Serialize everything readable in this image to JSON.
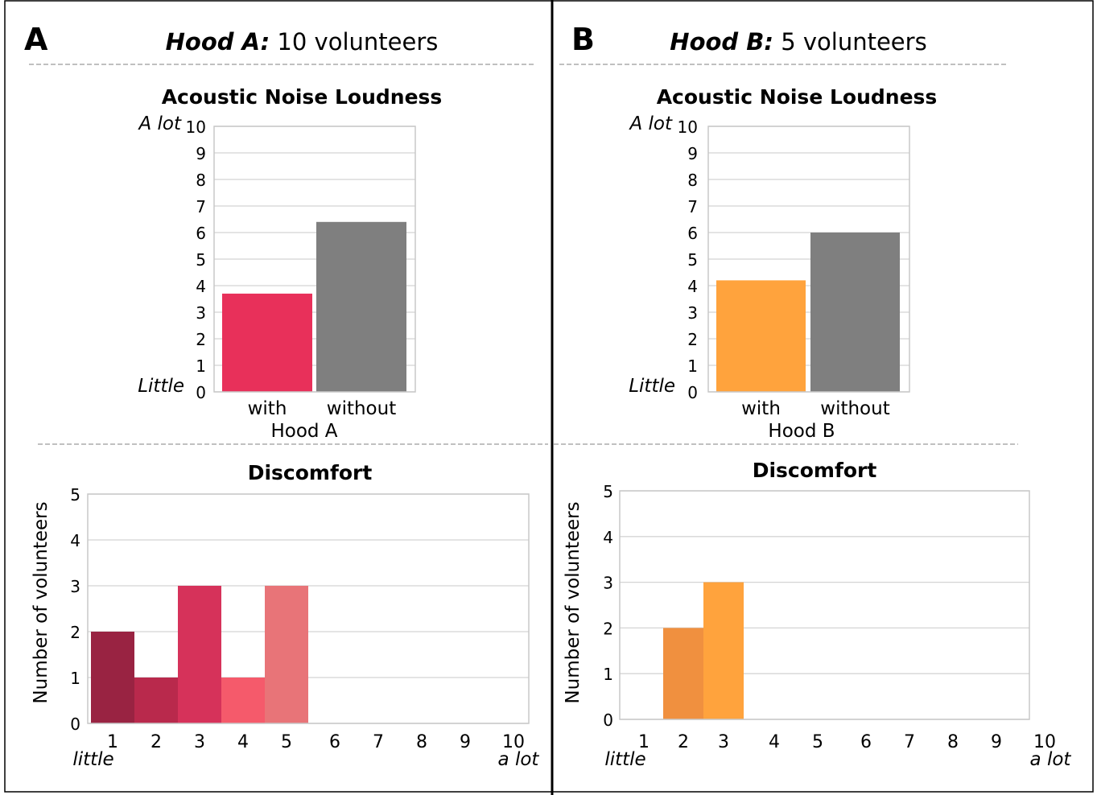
{
  "panels": [
    {
      "letter": "A",
      "title_bold": "Hood A:",
      "title_rest": " 10 volunteers",
      "loudness": {
        "title": "Acoustic Noise Loudness",
        "y_top_label": "A lot",
        "y_bottom_label": "Little",
        "xlabel": "Hood A"
      },
      "discomfort": {
        "title": "Discomfort",
        "ylabel": "Number of volunteers",
        "x_low_label": "little",
        "x_high_label": "a lot"
      }
    },
    {
      "letter": "B",
      "title_bold": "Hood B:",
      "title_rest": " 5 volunteers",
      "loudness": {
        "title": "Acoustic Noise Loudness",
        "y_top_label": "A lot",
        "y_bottom_label": "Little",
        "xlabel": "Hood B"
      },
      "discomfort": {
        "title": "Discomfort",
        "ylabel": "Number of volunteers",
        "x_low_label": "little",
        "x_high_label": "a lot"
      }
    }
  ],
  "chart_data": [
    {
      "id": "loudness-a",
      "type": "bar",
      "title": "Acoustic Noise Loudness",
      "categories": [
        "with",
        "without"
      ],
      "values": [
        3.7,
        6.4
      ],
      "colors": [
        "#e8305a",
        "#7f7f7f"
      ],
      "xlabel": "Hood A",
      "ylabel": "",
      "ylim": [
        0,
        10
      ],
      "yticks": [
        "0",
        "1",
        "2",
        "3",
        "4",
        "5",
        "6",
        "7",
        "8",
        "9",
        "10"
      ],
      "grid": true
    },
    {
      "id": "loudness-b",
      "type": "bar",
      "title": "Acoustic Noise Loudness",
      "categories": [
        "with",
        "without"
      ],
      "values": [
        4.2,
        6.0
      ],
      "colors": [
        "#ffa33d",
        "#7f7f7f"
      ],
      "xlabel": "Hood B",
      "ylabel": "",
      "ylim": [
        0,
        10
      ],
      "yticks": [
        "0",
        "1",
        "2",
        "3",
        "4",
        "5",
        "6",
        "7",
        "8",
        "9",
        "10"
      ],
      "grid": true
    },
    {
      "id": "discomfort-a",
      "type": "bar",
      "title": "Discomfort",
      "categories": [
        "1",
        "2",
        "3",
        "4",
        "5",
        "6",
        "7",
        "8",
        "9",
        "10"
      ],
      "values": [
        2,
        1,
        3,
        1,
        3,
        0,
        0,
        0,
        0,
        0
      ],
      "colors": [
        "#992342",
        "#b9294c",
        "#d6325a",
        "#f55a6b",
        "#e87478",
        "#e87478",
        "#e87478",
        "#e87478",
        "#e87478",
        "#e87478"
      ],
      "xlabel": "",
      "ylabel": "Number of volunteers",
      "ylim": [
        0,
        5
      ],
      "yticks": [
        "0",
        "1",
        "2",
        "3",
        "4",
        "5"
      ],
      "grid": true
    },
    {
      "id": "discomfort-b",
      "type": "bar",
      "title": "Discomfort",
      "categories": [
        "1",
        "2",
        "3",
        "4",
        "5",
        "6",
        "7",
        "8",
        "9",
        "10"
      ],
      "values": [
        0,
        2,
        3,
        0,
        0,
        0,
        0,
        0,
        0,
        0
      ],
      "colors": [
        "#f0903f",
        "#f0903f",
        "#ffa33d",
        "#ffa33d",
        "#ffa33d",
        "#ffa33d",
        "#ffa33d",
        "#ffa33d",
        "#ffa33d",
        "#ffa33d"
      ],
      "xlabel": "",
      "ylabel": "Number of volunteers",
      "ylim": [
        0,
        5
      ],
      "yticks": [
        "0",
        "1",
        "2",
        "3",
        "4",
        "5"
      ],
      "grid": true
    }
  ]
}
